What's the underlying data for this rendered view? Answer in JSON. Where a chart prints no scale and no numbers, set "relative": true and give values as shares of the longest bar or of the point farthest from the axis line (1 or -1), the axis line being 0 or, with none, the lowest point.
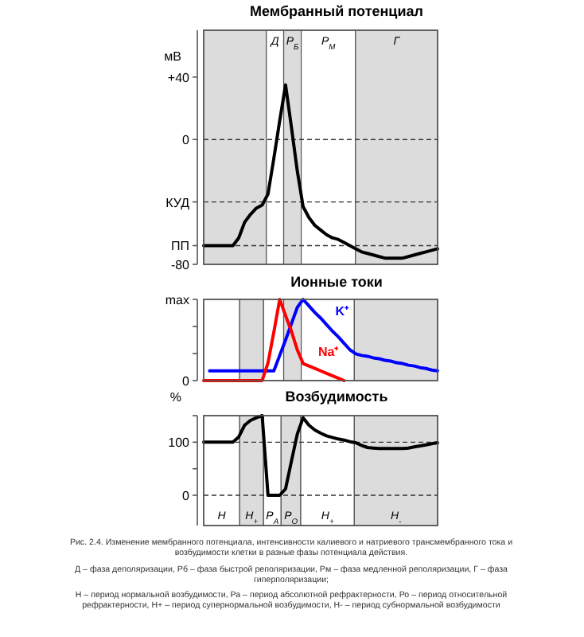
{
  "chart_data": [
    {
      "type": "line",
      "title": "Мембранный потенциал",
      "ylabel": "мВ",
      "categories": [
        null,
        null,
        null,
        null,
        null,
        null,
        null,
        null,
        null,
        null,
        null,
        null,
        null,
        null,
        null,
        null,
        null,
        null,
        null,
        null,
        null,
        null,
        null,
        null,
        null,
        null,
        null,
        null,
        null,
        null,
        null,
        null,
        null,
        null,
        null,
        null,
        null,
        null,
        null,
        null,
        null
      ],
      "ylim": [
        -80,
        70
      ],
      "yticks": [
        {
          "value": 40,
          "label": "+40"
        },
        0,
        {
          "value": -40,
          "label": "КУД"
        },
        {
          "value": -68,
          "label": "ПП"
        },
        -80
      ],
      "series": [
        {
          "color": "#000000",
          "values": [
            -68,
            -68,
            -68,
            -68,
            -68,
            -68,
            -63,
            -53,
            -48,
            -44,
            -42,
            -35,
            -12,
            12,
            35,
            8,
            -20,
            -43,
            -50,
            -55,
            -58,
            -61,
            -63,
            -64,
            -66,
            -68,
            -70,
            -72,
            -73,
            -74,
            -75,
            -76,
            -76,
            -76,
            -76,
            -75,
            -74,
            -73,
            -72,
            -71,
            -70
          ]
        }
      ],
      "ref_lines": [
        {
          "axis": "y",
          "value": 0,
          "line_style": "dashed"
        },
        {
          "axis": "y",
          "value": -40,
          "line_style": "dashed"
        },
        {
          "axis": "y",
          "value": -68,
          "line_style": "dashed"
        }
      ],
      "annotations": [
        "Д",
        "P$_{Б}$",
        "P$_{М}$",
        "Г"
      ]
    },
    {
      "type": "line",
      "title": "Ионные токи",
      "relative": true,
      "categories": [
        null,
        null,
        null,
        null,
        null,
        null,
        null,
        null,
        null,
        null,
        null,
        null,
        null,
        null,
        null,
        null,
        null,
        null,
        null,
        null,
        null,
        null,
        null,
        null,
        null,
        null,
        null,
        null,
        null,
        null,
        null,
        null,
        null,
        null,
        null,
        null,
        null,
        null,
        null,
        null,
        null
      ],
      "series": [
        {
          "name": "K⁺",
          "color": "#0000ff",
          "values": [
            null,
            0.12,
            0.12,
            0.12,
            0.12,
            0.12,
            0.12,
            0.12,
            0.12,
            0.12,
            0.12,
            0.12,
            0.12,
            0.31,
            0.5,
            0.7,
            0.9,
            1,
            0.92,
            0.84,
            0.77,
            0.69,
            0.61,
            0.54,
            0.46,
            0.38,
            0.33,
            0.31,
            0.3,
            0.28,
            0.27,
            0.25,
            0.24,
            0.22,
            0.21,
            0.19,
            0.18,
            0.16,
            0.15,
            0.13,
            0.12
          ]
        },
        {
          "name": "Na⁺",
          "color": "#ff0000",
          "values": [
            0,
            0,
            0,
            0,
            0,
            0,
            0,
            0,
            0,
            0,
            0,
            0.22,
            0.6,
            1,
            0.8,
            0.61,
            0.38,
            0.21,
            0.18,
            0.15,
            0.12,
            0.09,
            0.06,
            0.03,
            0,
            null,
            null,
            null,
            null,
            null,
            null,
            null,
            null,
            null,
            null,
            null,
            null,
            null,
            null,
            null,
            null
          ]
        }
      ],
      "annotations": [
        "max",
        "0"
      ]
    },
    {
      "type": "line",
      "title": "Возбудимость",
      "ylabel": "%",
      "categories": [
        null,
        null,
        null,
        null,
        null,
        null,
        null,
        null,
        null,
        null,
        null,
        null,
        null,
        null,
        null,
        null,
        null,
        null,
        null,
        null,
        null,
        null,
        null,
        null,
        null,
        null,
        null,
        null,
        null,
        null,
        null,
        null,
        null,
        null,
        null,
        null,
        null,
        null,
        null,
        null,
        null
      ],
      "ylim": [
        -57,
        150
      ],
      "yticks": [
        0,
        {
          "value": 50,
          "label": null
        },
        100,
        {
          "value": 150,
          "label": null
        }
      ],
      "series": [
        {
          "color": "#000000",
          "values": [
            100,
            100,
            100,
            100,
            100,
            100,
            110,
            132,
            141,
            146,
            150,
            0,
            0,
            0,
            12,
            64,
            115,
            146,
            132,
            123,
            117,
            112,
            109,
            106,
            104,
            101,
            99,
            94,
            90,
            89,
            88,
            88,
            88,
            88,
            88,
            89,
            91,
            93,
            95,
            97,
            99
          ]
        }
      ],
      "ref_lines": [
        {
          "axis": "y",
          "value": 100,
          "line_style": "dashed"
        },
        {
          "axis": "y",
          "value": 0,
          "line_style": "dashed"
        }
      ],
      "annotations": [
        "Н",
        "Н$_{+}$",
        "P$_{А}$",
        "P$_{О}$",
        "Н$_{+}$",
        "Н$_{-}$",
        "Рис. 2.4. Изменение мембранного потенциала, интенсивности калиевого и натриевого трансмембранного тока и возбудимости клетки в разные фазы потенциала действия.",
        "Д – фаза деполяризации, Рб – фаза быстрой реполяризации, Рм – фаза медленной реполяризации, Г – фаза гиперполяризации;",
        "Н – период нормальной возбудимости, Ра – период абсолютной рефрактерности, Ро – период относительной рефрактерности, Н+ – период супернормальной возбудимости, Н- – период субнормальной возбудимости"
      ]
    }
  ]
}
